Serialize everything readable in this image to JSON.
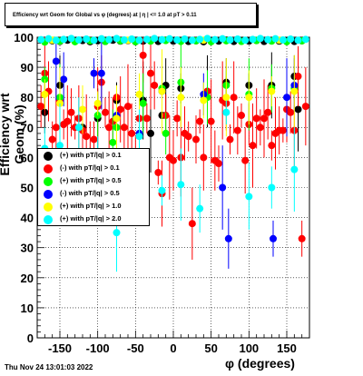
{
  "chart_data": {
    "type": "scatter",
    "title": "Efficiency wrt Geom for Global vs φ (degrees) at | η | <= 1.0 at pT > 0.11",
    "xlabel": "φ (degrees)",
    "ylabel": "Efficiency wrt Geom (%)",
    "xlim": [
      -180,
      180
    ],
    "ylim": [
      0,
      100
    ],
    "xticks": [
      -150,
      -100,
      -50,
      0,
      50,
      100,
      150
    ],
    "yticks": [
      0,
      10,
      20,
      30,
      40,
      50,
      60,
      70,
      80,
      90,
      100
    ],
    "grid": true,
    "legend_position": "left",
    "series": [
      {
        "name": "(+) with pT/|q| > 0.1",
        "color": "#000000",
        "points": [
          [
            -170,
            98.5
          ],
          [
            -160,
            98.8
          ],
          [
            -150,
            98.6
          ],
          [
            -140,
            99.0
          ],
          [
            -130,
            98.7
          ],
          [
            -120,
            98.9
          ],
          [
            -110,
            98.5
          ],
          [
            -100,
            98.8
          ],
          [
            -90,
            98.6
          ],
          [
            -80,
            99.0
          ],
          [
            -70,
            98.7
          ],
          [
            -60,
            98.9
          ],
          [
            -50,
            98.5
          ],
          [
            -40,
            98.7
          ],
          [
            -30,
            98.9
          ],
          [
            -20,
            98.6
          ],
          [
            -10,
            99.0
          ],
          [
            0,
            98.7
          ],
          [
            10,
            98.9
          ],
          [
            20,
            98.6
          ],
          [
            30,
            98.8
          ],
          [
            40,
            98.5
          ],
          [
            50,
            98.9
          ],
          [
            60,
            98.7
          ],
          [
            70,
            99.0
          ],
          [
            80,
            98.6
          ],
          [
            90,
            98.8
          ],
          [
            100,
            98.7
          ],
          [
            110,
            98.9
          ],
          [
            120,
            98.6
          ],
          [
            130,
            98.8
          ],
          [
            140,
            98.7
          ],
          [
            150,
            98.9
          ],
          [
            160,
            98.6
          ],
          [
            170,
            98.8
          ],
          [
            -170,
            75
          ],
          [
            -120,
            70
          ],
          [
            -100,
            73
          ],
          [
            -75,
            79
          ],
          [
            -40,
            79
          ],
          [
            -10,
            84
          ],
          [
            10,
            83
          ],
          [
            45,
            82
          ],
          [
            70,
            85
          ],
          [
            100,
            84
          ],
          [
            130,
            84
          ],
          [
            160,
            87
          ],
          [
            165,
            76
          ],
          [
            -150,
            84
          ],
          [
            -15,
            74
          ],
          [
            -30,
            68
          ]
        ]
      },
      {
        "name": "(-) with pT/|q| > 0.1",
        "color": "#ff0000",
        "points": [
          [
            -175,
            77
          ],
          [
            -170,
            88
          ],
          [
            -165,
            82
          ],
          [
            -160,
            66
          ],
          [
            -155,
            70
          ],
          [
            -150,
            79
          ],
          [
            -145,
            71
          ],
          [
            -140,
            72
          ],
          [
            -135,
            75
          ],
          [
            -130,
            70
          ],
          [
            -125,
            73
          ],
          [
            -120,
            69
          ],
          [
            -115,
            67
          ],
          [
            -110,
            62
          ],
          [
            -105,
            66
          ],
          [
            -100,
            77
          ],
          [
            -95,
            85
          ],
          [
            -90,
            75
          ],
          [
            -85,
            70
          ],
          [
            -80,
            72
          ],
          [
            -75,
            80
          ],
          [
            -70,
            76
          ],
          [
            -65,
            70
          ],
          [
            -60,
            77
          ],
          [
            -55,
            68
          ],
          [
            -50,
            61
          ],
          [
            -45,
            73
          ],
          [
            -40,
            94
          ],
          [
            -35,
            73
          ],
          [
            -30,
            88
          ],
          [
            -25,
            84
          ],
          [
            -20,
            55
          ],
          [
            -15,
            48
          ],
          [
            -10,
            74
          ],
          [
            -5,
            60
          ],
          [
            0,
            59
          ],
          [
            5,
            73
          ],
          [
            10,
            60
          ],
          [
            15,
            68
          ],
          [
            20,
            67
          ],
          [
            25,
            38
          ],
          [
            30,
            66
          ],
          [
            35,
            72
          ],
          [
            40,
            60
          ],
          [
            45,
            82
          ],
          [
            50,
            72
          ],
          [
            55,
            59
          ],
          [
            60,
            58
          ],
          [
            65,
            79
          ],
          [
            70,
            78
          ],
          [
            75,
            66
          ],
          [
            80,
            80
          ],
          [
            85,
            69
          ],
          [
            90,
            74
          ],
          [
            95,
            59
          ],
          [
            100,
            71
          ],
          [
            105,
            64
          ],
          [
            110,
            73
          ],
          [
            115,
            70
          ],
          [
            120,
            73
          ],
          [
            125,
            75
          ],
          [
            130,
            64
          ],
          [
            135,
            68
          ],
          [
            140,
            69
          ],
          [
            145,
            69
          ],
          [
            150,
            76
          ],
          [
            155,
            75
          ],
          [
            160,
            69
          ],
          [
            165,
            87
          ],
          [
            170,
            33
          ],
          [
            175,
            77
          ]
        ]
      },
      {
        "name": "(+) with pT/|q| > 0.5",
        "color": "#00ff00",
        "points": [
          [
            -170,
            98.4
          ],
          [
            -150,
            98.7
          ],
          [
            -130,
            98.5
          ],
          [
            -110,
            98.8
          ],
          [
            -90,
            98.6
          ],
          [
            -70,
            98.8
          ],
          [
            -50,
            98.5
          ],
          [
            -30,
            98.7
          ],
          [
            -10,
            98.9
          ],
          [
            10,
            98.6
          ],
          [
            30,
            98.8
          ],
          [
            50,
            98.5
          ],
          [
            70,
            98.8
          ],
          [
            90,
            98.6
          ],
          [
            110,
            98.9
          ],
          [
            130,
            98.7
          ],
          [
            150,
            98.5
          ],
          [
            170,
            98.8
          ],
          [
            -170,
            86
          ],
          [
            -150,
            80
          ],
          [
            -100,
            74
          ],
          [
            -75,
            70
          ],
          [
            -40,
            78
          ],
          [
            -15,
            83
          ],
          [
            10,
            85
          ],
          [
            45,
            80
          ],
          [
            70,
            84
          ],
          [
            100,
            81
          ],
          [
            130,
            83
          ],
          [
            160,
            83
          ],
          [
            -80,
            65
          ],
          [
            -10,
            68
          ]
        ]
      },
      {
        "name": "(-) with pT/|q| > 0.5",
        "color": "#0000ff",
        "points": [
          [
            -155,
            92
          ],
          [
            -145,
            86
          ],
          [
            -105,
            88
          ],
          [
            -95,
            88
          ],
          [
            -75,
            74
          ],
          [
            -45,
            68
          ],
          [
            -15,
            82
          ],
          [
            40,
            81
          ],
          [
            65,
            50
          ],
          [
            73,
            33
          ],
          [
            132,
            33
          ],
          [
            150,
            80
          ],
          [
            160,
            84
          ]
        ]
      },
      {
        "name": "(+) with pT/|q| > 1.0",
        "color": "#ffff00",
        "points": [
          [
            -170,
            81
          ],
          [
            -150,
            78
          ],
          [
            -120,
            76
          ],
          [
            -100,
            78
          ],
          [
            -75,
            73
          ],
          [
            -45,
            81
          ],
          [
            -15,
            82
          ],
          [
            10,
            80
          ],
          [
            40,
            79
          ],
          [
            70,
            80
          ],
          [
            100,
            80
          ],
          [
            130,
            82
          ],
          [
            160,
            82
          ],
          [
            -160,
            99
          ],
          [
            -60,
            99
          ],
          [
            40,
            99
          ],
          [
            140,
            99
          ]
        ]
      },
      {
        "name": "(+) with pT/|q| > 2.0",
        "color": "#00ffff",
        "points": [
          [
            -175,
            99.2
          ],
          [
            -165,
            99.5
          ],
          [
            -155,
            99.0
          ],
          [
            -145,
            99.3
          ],
          [
            -135,
            99.6
          ],
          [
            -125,
            99.1
          ],
          [
            -115,
            99.4
          ],
          [
            -105,
            99.0
          ],
          [
            -95,
            99.5
          ],
          [
            -85,
            99.2
          ],
          [
            -75,
            99.6
          ],
          [
            -65,
            99.1
          ],
          [
            -55,
            99.4
          ],
          [
            -45,
            99.0
          ],
          [
            -35,
            99.3
          ],
          [
            -25,
            99.6
          ],
          [
            -15,
            99.2
          ],
          [
            -5,
            99.5
          ],
          [
            5,
            99.1
          ],
          [
            15,
            99.4
          ],
          [
            25,
            99.0
          ],
          [
            35,
            99.3
          ],
          [
            45,
            99.6
          ],
          [
            55,
            99.2
          ],
          [
            65,
            99.5
          ],
          [
            75,
            99.1
          ],
          [
            85,
            99.4
          ],
          [
            95,
            99.0
          ],
          [
            105,
            99.3
          ],
          [
            115,
            99.6
          ],
          [
            125,
            99.2
          ],
          [
            135,
            99.5
          ],
          [
            145,
            99.1
          ],
          [
            155,
            99.4
          ],
          [
            165,
            99.0
          ],
          [
            175,
            99.3
          ],
          [
            -170,
            63
          ],
          [
            -150,
            64
          ],
          [
            -125,
            70
          ],
          [
            -100,
            61
          ],
          [
            -75,
            35
          ],
          [
            -45,
            67
          ],
          [
            -15,
            49
          ],
          [
            10,
            51
          ],
          [
            35,
            43
          ],
          [
            70,
            75
          ],
          [
            100,
            47
          ],
          [
            130,
            50
          ],
          [
            160,
            56
          ]
        ]
      }
    ]
  },
  "footer": {
    "timestamp": "Thu Nov 24 13:01:03 2022"
  }
}
